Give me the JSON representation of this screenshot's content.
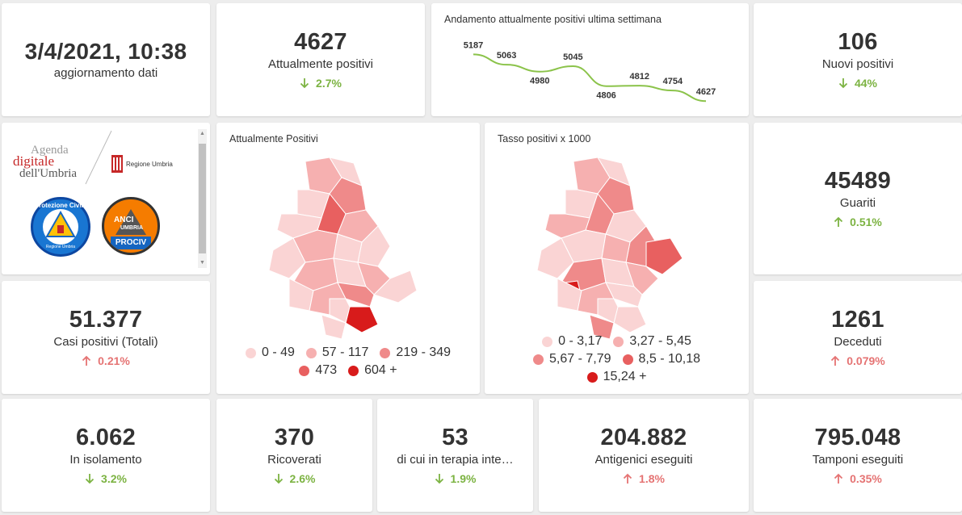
{
  "update": {
    "datetime": "3/4/2021, 10:38",
    "label": "aggiornamento dati"
  },
  "attualmente_positivi": {
    "value": "4627",
    "label": "Attualmente positivi",
    "delta": "2.7%",
    "direction": "down"
  },
  "trend": {
    "title": "Andamento attualmente positivi ultima settimana",
    "chart_data": {
      "type": "line",
      "title": "Andamento attualmente positivi ultima settimana",
      "x": [
        1,
        2,
        3,
        4,
        5,
        6,
        7,
        8
      ],
      "values": [
        5187,
        5063,
        4980,
        5045,
        4806,
        4812,
        4754,
        4627
      ],
      "labels": [
        "5187",
        "5063",
        "4980",
        "5045",
        "4806",
        "4812",
        "4754",
        "4627"
      ],
      "ylim": [
        4600,
        5200
      ],
      "color": "#8bc34a",
      "grid": false
    }
  },
  "nuovi_positivi": {
    "value": "106",
    "label": "Nuovi positivi",
    "delta": "44%",
    "direction": "down"
  },
  "logos": {
    "agenda_line1": "Agenda",
    "agenda_line2": "digitale",
    "agenda_line3": "dell'Umbria",
    "regione_text": "Regione Umbria",
    "protezione_text": "Protezione Civile",
    "protezione_sub": "Regione Umbria",
    "anci_text": "ANCI",
    "anci_sub": "UMBRIA",
    "anci_bottom": "PROCIV"
  },
  "map1": {
    "title": "Attualmente Positivi",
    "legend": [
      {
        "label": "0 - 49",
        "color": "#fad4d4"
      },
      {
        "label": "57 - 117",
        "color": "#f6b0b0"
      },
      {
        "label": "219 - 349",
        "color": "#ef8a8a"
      },
      {
        "label": "473",
        "color": "#e86060"
      },
      {
        "label": "604 +",
        "color": "#d81b1b"
      }
    ]
  },
  "map2": {
    "title": "Tasso positivi x 1000",
    "legend": [
      {
        "label": "0 - 3,17",
        "color": "#fad4d4"
      },
      {
        "label": "3,27 - 5,45",
        "color": "#f6b0b0"
      },
      {
        "label": "5,67 - 7,79",
        "color": "#ef8a8a"
      },
      {
        "label": "8,5 - 10,18",
        "color": "#e86060"
      },
      {
        "label": "15,24 +",
        "color": "#d81b1b"
      }
    ]
  },
  "guariti": {
    "value": "45489",
    "label": "Guariti",
    "delta": "0.51%",
    "direction": "up-green"
  },
  "casi_totali": {
    "value": "51.377",
    "label": "Casi positivi (Totali)",
    "delta": "0.21%",
    "direction": "up"
  },
  "deceduti": {
    "value": "1261",
    "label": "Deceduti",
    "delta": "0.079%",
    "direction": "up"
  },
  "isolamento": {
    "value": "6.062",
    "label": "In isolamento",
    "delta": "3.2%",
    "direction": "down"
  },
  "ricoverati": {
    "value": "370",
    "label": "Ricoverati",
    "delta": "2.6%",
    "direction": "down"
  },
  "terapia": {
    "value": "53",
    "label": "di cui in terapia inte…",
    "delta": "1.9%",
    "direction": "down"
  },
  "antigenici": {
    "value": "204.882",
    "label": "Antigenici eseguiti",
    "delta": "1.8%",
    "direction": "up"
  },
  "tamponi": {
    "value": "795.048",
    "label": "Tamponi eseguiti",
    "delta": "0.35%",
    "direction": "up"
  },
  "colors": {
    "green": "#7cb342",
    "red": "#e57373",
    "line": "#8bc34a"
  }
}
